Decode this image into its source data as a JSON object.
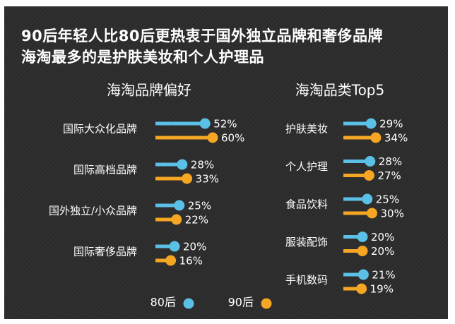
{
  "title_lines": [
    "90后年轻人比80后更热衷于国外独立品牌和奢侈品牌",
    "海淘最多的是护肤美妆和个人护理品"
  ],
  "colors": {
    "background": "#2c2c2c",
    "series_80": "#5bc0e6",
    "series_90": "#f5a623",
    "text": "#ffffff"
  },
  "chart_data": [
    {
      "type": "bar",
      "title": "海淘品牌偏好",
      "categories": [
        "国际大众化品牌",
        "国际高档品牌",
        "国外独立/小众品牌",
        "国际奢侈品牌"
      ],
      "series": [
        {
          "name": "80后",
          "values": [
            52,
            28,
            25,
            20
          ]
        },
        {
          "name": "90后",
          "values": [
            60,
            33,
            22,
            16
          ]
        }
      ],
      "unit": "%"
    },
    {
      "type": "bar",
      "title": "海淘品类Top5",
      "categories": [
        "护肤美妆",
        "个人护理",
        "食品饮料",
        "服装配饰",
        "手机数码"
      ],
      "series": [
        {
          "name": "80后",
          "values": [
            29,
            28,
            25,
            20,
            21
          ]
        },
        {
          "name": "90后",
          "values": [
            34,
            27,
            30,
            20,
            19
          ]
        }
      ],
      "unit": "%"
    }
  ],
  "legend": [
    {
      "label": "80后"
    },
    {
      "label": "90后"
    }
  ]
}
